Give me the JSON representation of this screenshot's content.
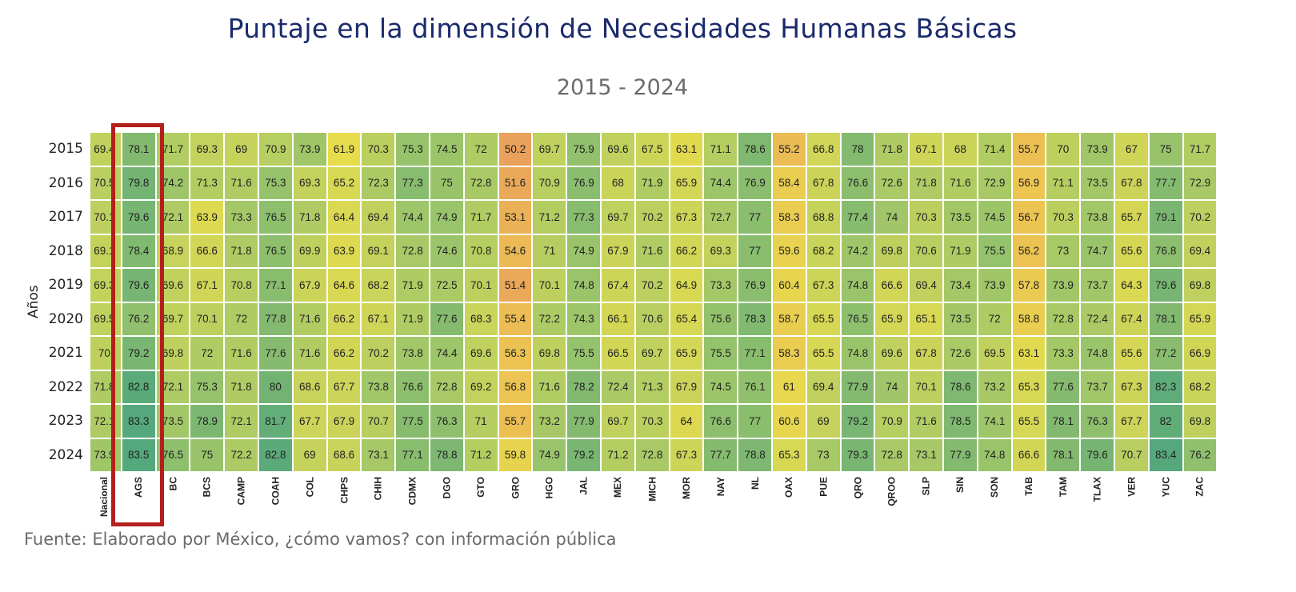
{
  "chart_data": {
    "type": "heatmap",
    "title": "Puntaje en la dimensión de Necesidades Humanas Básicas",
    "subtitle": "2015 - 2024",
    "ylabel": "Años",
    "xlabel": "",
    "years": [
      "2015",
      "2016",
      "2017",
      "2018",
      "2019",
      "2020",
      "2021",
      "2022",
      "2023",
      "2024"
    ],
    "categories": [
      "Nacional",
      "AGS",
      "BC",
      "BCS",
      "CAMP",
      "COAH",
      "COL",
      "CHPS",
      "CHIH",
      "CDMX",
      "DGO",
      "GTO",
      "GRO",
      "HGO",
      "JAL",
      "MEX",
      "MICH",
      "MOR",
      "NAY",
      "NL",
      "OAX",
      "PUE",
      "QRO",
      "QROO",
      "SLP",
      "SIN",
      "SON",
      "TAB",
      "TAM",
      "TLAX",
      "VER",
      "YUC",
      "ZAC"
    ],
    "values": [
      [
        69.4,
        78.1,
        71.7,
        69.3,
        69,
        70.9,
        73.9,
        61.9,
        70.3,
        75.3,
        74.5,
        72,
        50.2,
        69.7,
        75.9,
        69.6,
        67.5,
        63.1,
        71.1,
        78.6,
        55.2,
        66.8,
        78,
        71.8,
        67.1,
        68,
        71.4,
        55.7,
        70,
        73.9,
        67,
        75,
        71.7
      ],
      [
        70.5,
        79.8,
        74.2,
        71.3,
        71.6,
        75.3,
        69.3,
        65.2,
        72.3,
        77.3,
        75,
        72.8,
        51.6,
        70.9,
        76.9,
        68,
        71.9,
        65.9,
        74.4,
        76.9,
        58.4,
        67.8,
        76.6,
        72.6,
        71.8,
        71.6,
        72.9,
        56.9,
        71.1,
        73.5,
        67.8,
        77.7,
        72.9
      ],
      [
        70.1,
        79.6,
        72.1,
        63.9,
        73.3,
        76.5,
        71.8,
        64.4,
        69.4,
        74.4,
        74.9,
        71.7,
        53.1,
        71.2,
        77.3,
        69.7,
        70.2,
        67.3,
        72.7,
        77,
        58.3,
        68.8,
        77.4,
        74,
        70.3,
        73.5,
        74.5,
        56.7,
        70.3,
        73.8,
        65.7,
        79.1,
        70.2
      ],
      [
        69.1,
        78.4,
        68.9,
        66.6,
        71.8,
        76.5,
        69.9,
        63.9,
        69.1,
        72.8,
        74.6,
        70.8,
        54.6,
        71,
        74.9,
        67.9,
        71.6,
        66.2,
        69.3,
        77,
        59.6,
        68.2,
        74.2,
        69.8,
        70.6,
        71.9,
        75.5,
        56.2,
        73,
        74.7,
        65.6,
        76.8,
        69.4
      ],
      [
        69.3,
        79.6,
        69.6,
        67.1,
        70.8,
        77.1,
        67.9,
        64.6,
        68.2,
        71.9,
        72.5,
        70.1,
        51.4,
        70.1,
        74.8,
        67.4,
        70.2,
        64.9,
        73.3,
        76.9,
        60.4,
        67.3,
        74.8,
        66.6,
        69.4,
        73.4,
        73.9,
        57.8,
        73.9,
        73.7,
        64.3,
        79.6,
        69.8
      ],
      [
        69.5,
        76.2,
        69.7,
        70.1,
        72,
        77.8,
        71.6,
        66.2,
        67.1,
        71.9,
        77.6,
        68.3,
        55.4,
        72.2,
        74.3,
        66.1,
        70.6,
        65.4,
        75.6,
        78.3,
        58.7,
        65.5,
        76.5,
        65.9,
        65.1,
        73.5,
        72,
        58.8,
        72.8,
        72.4,
        67.4,
        78.1,
        65.9
      ],
      [
        70,
        79.2,
        69.8,
        72,
        71.6,
        77.6,
        71.6,
        66.2,
        70.2,
        73.8,
        74.4,
        69.6,
        56.3,
        69.8,
        75.5,
        66.5,
        69.7,
        65.9,
        75.5,
        77.1,
        58.3,
        65.5,
        74.8,
        69.6,
        67.8,
        72.6,
        69.5,
        63.1,
        73.3,
        74.8,
        65.6,
        77.2,
        66.9
      ],
      [
        71.8,
        82.8,
        72.1,
        75.3,
        71.8,
        80,
        68.6,
        67.7,
        73.8,
        76.6,
        72.8,
        69.2,
        56.8,
        71.6,
        78.2,
        72.4,
        71.3,
        67.9,
        74.5,
        76.1,
        61,
        69.4,
        77.9,
        74,
        70.1,
        78.6,
        73.2,
        65.3,
        77.6,
        73.7,
        67.3,
        82.3,
        68.2
      ],
      [
        72.1,
        83.3,
        73.5,
        78.9,
        72.1,
        81.7,
        67.7,
        67.9,
        70.7,
        77.5,
        76.3,
        71,
        55.7,
        73.2,
        77.9,
        69.7,
        70.3,
        64,
        76.6,
        77,
        60.6,
        69,
        79.2,
        70.9,
        71.6,
        78.5,
        74.1,
        65.5,
        78.1,
        76.3,
        67.7,
        82,
        69.8
      ],
      [
        73.9,
        83.5,
        76.5,
        75,
        72.2,
        82.8,
        69,
        68.6,
        73.1,
        77.1,
        78.8,
        71.2,
        59.8,
        74.9,
        79.2,
        71.2,
        72.8,
        67.3,
        77.7,
        78.8,
        65.3,
        73,
        79.3,
        72.8,
        73.1,
        77.9,
        74.8,
        66.6,
        78.1,
        79.6,
        70.7,
        83.4,
        76.2
      ]
    ],
    "colorscale": [
      "#e9a05b",
      "#ecc552",
      "#e6dc4c",
      "#c7d35b",
      "#9cc56a",
      "#7fb870",
      "#4fa67d"
    ],
    "highlighted_category": "AGS",
    "highlight_color": "#b3201c",
    "grid": false,
    "legend": "none"
  },
  "source": "Fuente: Elaborado por México, ¿cómo vamos? con información pública"
}
